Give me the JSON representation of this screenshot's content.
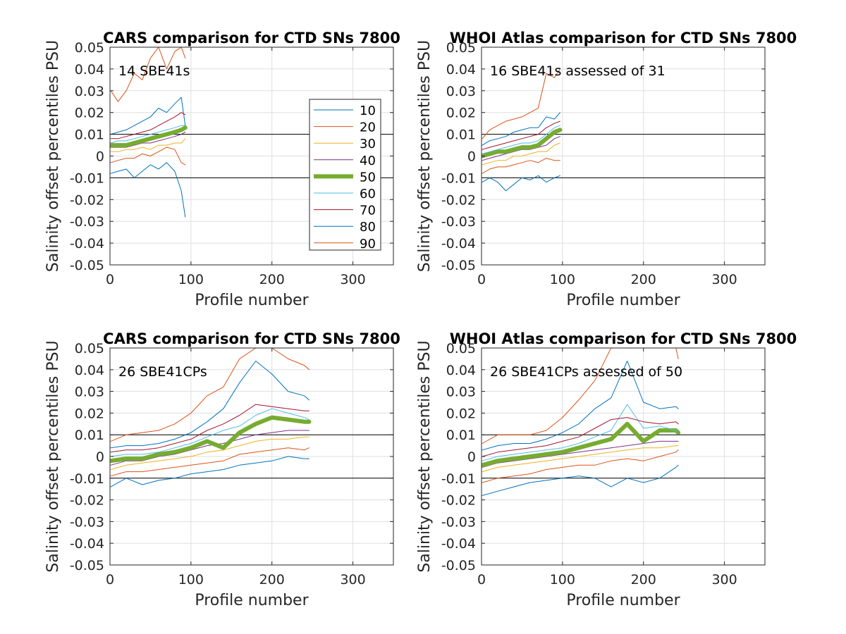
{
  "chart_data": [
    {
      "type": "line",
      "title": "CARS comparison for CTD SNs 7800",
      "xlabel": "Profile number",
      "ylabel": "Salinity offset percentiles PSU",
      "annotation": "14 SBE41s",
      "xlim": [
        0,
        350
      ],
      "ylim": [
        -0.05,
        0.05
      ],
      "xticks": [
        "0",
        "100",
        "200",
        "300"
      ],
      "yticks": [
        "-0.05",
        "-0.04",
        "-0.03",
        "-0.02",
        "-0.01",
        "0",
        "0.01",
        "0.02",
        "0.03",
        "0.04",
        "0.05"
      ],
      "grid": true,
      "reference_lines": [
        -0.01,
        0.01
      ],
      "legend": {
        "placement": "right-middle",
        "entries": [
          "10",
          "20",
          "30",
          "40",
          "50",
          "60",
          "70",
          "80",
          "90"
        ]
      },
      "x": [
        1,
        10,
        20,
        30,
        40,
        50,
        60,
        70,
        80,
        88,
        93
      ],
      "series": [
        {
          "name": "10",
          "values": [
            -0.008,
            -0.007,
            -0.006,
            -0.01,
            -0.007,
            -0.004,
            -0.006,
            -0.003,
            -0.007,
            -0.016,
            -0.028
          ]
        },
        {
          "name": "20",
          "values": [
            -0.003,
            -0.002,
            -0.001,
            -0.001,
            0.001,
            0.0,
            0.002,
            0.004,
            0.003,
            -0.003,
            -0.004
          ]
        },
        {
          "name": "30",
          "values": [
            0.002,
            0.002,
            0.003,
            0.003,
            0.004,
            0.003,
            0.005,
            0.005,
            0.006,
            0.006,
            0.008
          ]
        },
        {
          "name": "40",
          "values": [
            0.004,
            0.004,
            0.004,
            0.005,
            0.006,
            0.006,
            0.007,
            0.008,
            0.009,
            0.01,
            0.011
          ]
        },
        {
          "name": "50",
          "values": [
            0.005,
            0.005,
            0.005,
            0.006,
            0.007,
            0.008,
            0.009,
            0.01,
            0.011,
            0.012,
            0.013
          ]
        },
        {
          "name": "60",
          "values": [
            0.006,
            0.007,
            0.007,
            0.008,
            0.009,
            0.01,
            0.011,
            0.012,
            0.013,
            0.014,
            0.014
          ]
        },
        {
          "name": "70",
          "values": [
            0.008,
            0.008,
            0.009,
            0.01,
            0.011,
            0.012,
            0.014,
            0.016,
            0.018,
            0.02,
            0.019
          ]
        },
        {
          "name": "80",
          "values": [
            0.01,
            0.011,
            0.012,
            0.014,
            0.016,
            0.018,
            0.022,
            0.02,
            0.024,
            0.027,
            0.014
          ]
        },
        {
          "name": "90",
          "values": [
            0.03,
            0.025,
            0.03,
            0.038,
            0.035,
            0.045,
            0.05,
            0.04,
            0.048,
            0.05,
            0.045
          ]
        }
      ]
    },
    {
      "type": "line",
      "title": "WHOI Atlas comparison for CTD SNs 7800",
      "xlabel": "Profile number",
      "ylabel": "Salinity offset percentiles PSU",
      "annotation": "16 SBE41s assessed of 31",
      "xlim": [
        0,
        350
      ],
      "ylim": [
        -0.05,
        0.05
      ],
      "xticks": [
        "0",
        "100",
        "200",
        "300"
      ],
      "yticks": [
        "-0.05",
        "-0.04",
        "-0.03",
        "-0.02",
        "-0.01",
        "0",
        "0.01",
        "0.02",
        "0.03",
        "0.04",
        "0.05"
      ],
      "grid": true,
      "reference_lines": [
        -0.01,
        0.01
      ],
      "x": [
        1,
        10,
        20,
        30,
        40,
        50,
        60,
        70,
        80,
        90,
        97
      ],
      "series": [
        {
          "name": "10",
          "values": [
            -0.012,
            -0.01,
            -0.012,
            -0.016,
            -0.013,
            -0.01,
            -0.011,
            -0.009,
            -0.012,
            -0.01,
            -0.009
          ]
        },
        {
          "name": "20",
          "values": [
            -0.008,
            -0.006,
            -0.005,
            -0.005,
            -0.004,
            -0.003,
            -0.002,
            -0.003,
            -0.001,
            -0.002,
            -0.002
          ]
        },
        {
          "name": "30",
          "values": [
            -0.004,
            -0.003,
            -0.002,
            -0.002,
            0.0,
            0.0,
            0.001,
            0.002,
            0.002,
            0.005,
            0.006
          ]
        },
        {
          "name": "40",
          "values": [
            -0.002,
            -0.001,
            0.0,
            0.001,
            0.002,
            0.003,
            0.003,
            0.004,
            0.005,
            0.008,
            0.009
          ]
        },
        {
          "name": "50",
          "values": [
            0.0,
            0.001,
            0.002,
            0.002,
            0.003,
            0.004,
            0.004,
            0.005,
            0.008,
            0.011,
            0.012
          ]
        },
        {
          "name": "60",
          "values": [
            0.001,
            0.002,
            0.003,
            0.004,
            0.005,
            0.006,
            0.006,
            0.007,
            0.01,
            0.013,
            0.014
          ]
        },
        {
          "name": "70",
          "values": [
            0.003,
            0.004,
            0.005,
            0.006,
            0.007,
            0.008,
            0.009,
            0.01,
            0.013,
            0.015,
            0.016
          ]
        },
        {
          "name": "80",
          "values": [
            0.005,
            0.007,
            0.008,
            0.009,
            0.011,
            0.012,
            0.013,
            0.013,
            0.018,
            0.017,
            0.02
          ]
        },
        {
          "name": "90",
          "values": [
            0.008,
            0.012,
            0.014,
            0.016,
            0.017,
            0.018,
            0.02,
            0.022,
            0.038,
            0.036,
            0.04
          ]
        }
      ]
    },
    {
      "type": "line",
      "title": "CARS comparison for CTD SNs 7800",
      "xlabel": "Profile number",
      "ylabel": "Salinity offset percentiles PSU",
      "annotation": "26 SBE41CPs",
      "xlim": [
        0,
        350
      ],
      "ylim": [
        -0.05,
        0.05
      ],
      "xticks": [
        "0",
        "100",
        "200",
        "300"
      ],
      "yticks": [
        "-0.05",
        "-0.04",
        "-0.03",
        "-0.02",
        "-0.01",
        "0",
        "0.01",
        "0.02",
        "0.03",
        "0.04",
        "0.05"
      ],
      "grid": true,
      "reference_lines": [
        -0.01,
        0.01
      ],
      "x": [
        1,
        20,
        40,
        60,
        80,
        100,
        120,
        140,
        160,
        180,
        200,
        220,
        240,
        246
      ],
      "series": [
        {
          "name": "10",
          "values": [
            -0.014,
            -0.01,
            -0.013,
            -0.011,
            -0.01,
            -0.008,
            -0.007,
            -0.006,
            -0.004,
            -0.003,
            -0.002,
            0.0,
            -0.001,
            -0.001
          ]
        },
        {
          "name": "20",
          "values": [
            -0.009,
            -0.007,
            -0.007,
            -0.006,
            -0.005,
            -0.004,
            -0.003,
            -0.002,
            0.001,
            0.002,
            0.003,
            0.004,
            0.003,
            0.004
          ]
        },
        {
          "name": "30",
          "values": [
            -0.006,
            -0.004,
            -0.003,
            -0.002,
            -0.001,
            0.0,
            0.002,
            0.003,
            0.005,
            0.007,
            0.008,
            0.008,
            0.009,
            0.009
          ]
        },
        {
          "name": "40",
          "values": [
            -0.004,
            -0.002,
            -0.002,
            0.0,
            0.001,
            0.003,
            0.005,
            0.006,
            0.008,
            0.01,
            0.011,
            0.012,
            0.012,
            0.012
          ]
        },
        {
          "name": "50",
          "values": [
            -0.002,
            -0.001,
            -0.001,
            0.001,
            0.002,
            0.004,
            0.007,
            0.004,
            0.011,
            0.015,
            0.018,
            0.017,
            0.016,
            0.016
          ]
        },
        {
          "name": "60",
          "values": [
            0.0,
            0.001,
            0.001,
            0.002,
            0.004,
            0.006,
            0.009,
            0.012,
            0.014,
            0.019,
            0.022,
            0.02,
            0.018,
            0.017
          ]
        },
        {
          "name": "70",
          "values": [
            0.002,
            0.003,
            0.003,
            0.004,
            0.006,
            0.008,
            0.012,
            0.015,
            0.019,
            0.024,
            0.023,
            0.022,
            0.021,
            0.021
          ]
        },
        {
          "name": "80",
          "values": [
            0.004,
            0.005,
            0.005,
            0.006,
            0.008,
            0.011,
            0.016,
            0.022,
            0.034,
            0.044,
            0.038,
            0.03,
            0.028,
            0.026
          ]
        },
        {
          "name": "90",
          "values": [
            0.007,
            0.01,
            0.011,
            0.012,
            0.015,
            0.02,
            0.028,
            0.032,
            0.045,
            0.05,
            0.05,
            0.045,
            0.042,
            0.04
          ]
        }
      ]
    },
    {
      "type": "line",
      "title": "WHOI Atlas comparison for CTD SNs 7800",
      "xlabel": "Profile number",
      "ylabel": "Salinity offset percentiles PSU",
      "annotation": "26 SBE41CPs assessed of 50",
      "xlim": [
        0,
        350
      ],
      "ylim": [
        -0.05,
        0.05
      ],
      "xticks": [
        "0",
        "100",
        "200",
        "300"
      ],
      "yticks": [
        "-0.05",
        "-0.04",
        "-0.03",
        "-0.02",
        "-0.01",
        "0",
        "0.01",
        "0.02",
        "0.03",
        "0.04",
        "0.05"
      ],
      "grid": true,
      "reference_lines": [
        -0.01,
        0.01
      ],
      "x": [
        1,
        20,
        40,
        60,
        80,
        100,
        120,
        140,
        160,
        180,
        200,
        220,
        240,
        243
      ],
      "series": [
        {
          "name": "10",
          "values": [
            -0.018,
            -0.016,
            -0.014,
            -0.012,
            -0.011,
            -0.01,
            -0.009,
            -0.01,
            -0.014,
            -0.01,
            -0.012,
            -0.01,
            -0.005,
            -0.004
          ]
        },
        {
          "name": "20",
          "values": [
            -0.012,
            -0.01,
            -0.009,
            -0.008,
            -0.006,
            -0.005,
            -0.004,
            -0.004,
            -0.002,
            -0.001,
            -0.002,
            0.0,
            0.002,
            0.003
          ]
        },
        {
          "name": "30",
          "values": [
            -0.007,
            -0.005,
            -0.004,
            -0.003,
            -0.002,
            -0.001,
            0.0,
            0.001,
            0.002,
            0.003,
            0.004,
            0.004,
            0.005,
            0.005
          ]
        },
        {
          "name": "40",
          "values": [
            -0.005,
            -0.003,
            -0.002,
            -0.001,
            0.0,
            0.001,
            0.002,
            0.003,
            0.004,
            0.005,
            0.006,
            0.007,
            0.007,
            0.007
          ]
        },
        {
          "name": "50",
          "values": [
            -0.004,
            -0.002,
            -0.001,
            0.0,
            0.001,
            0.002,
            0.004,
            0.006,
            0.008,
            0.015,
            0.007,
            0.012,
            0.012,
            0.011
          ]
        },
        {
          "name": "60",
          "values": [
            -0.002,
            0.0,
            0.001,
            0.002,
            0.003,
            0.004,
            0.006,
            0.009,
            0.012,
            0.024,
            0.013,
            0.014,
            0.012,
            0.012
          ]
        },
        {
          "name": "70",
          "values": [
            0.0,
            0.002,
            0.003,
            0.004,
            0.005,
            0.007,
            0.009,
            0.013,
            0.017,
            0.018,
            0.016,
            0.015,
            0.016,
            0.015
          ]
        },
        {
          "name": "80",
          "values": [
            0.003,
            0.005,
            0.006,
            0.006,
            0.008,
            0.011,
            0.015,
            0.022,
            0.027,
            0.044,
            0.025,
            0.022,
            0.023,
            0.022
          ]
        },
        {
          "name": "90",
          "values": [
            0.006,
            0.01,
            0.01,
            0.01,
            0.012,
            0.018,
            0.026,
            0.035,
            0.05,
            0.05,
            0.05,
            0.05,
            0.05,
            0.045
          ]
        }
      ]
    }
  ],
  "series_colors": {
    "10": "#0072BD",
    "20": "#D95319",
    "30": "#EDB120",
    "40": "#7E2F8E",
    "50": "#77AC30",
    "60": "#4DBEEE",
    "70": "#A2142F",
    "80": "#0072BD",
    "90": "#D95319"
  }
}
